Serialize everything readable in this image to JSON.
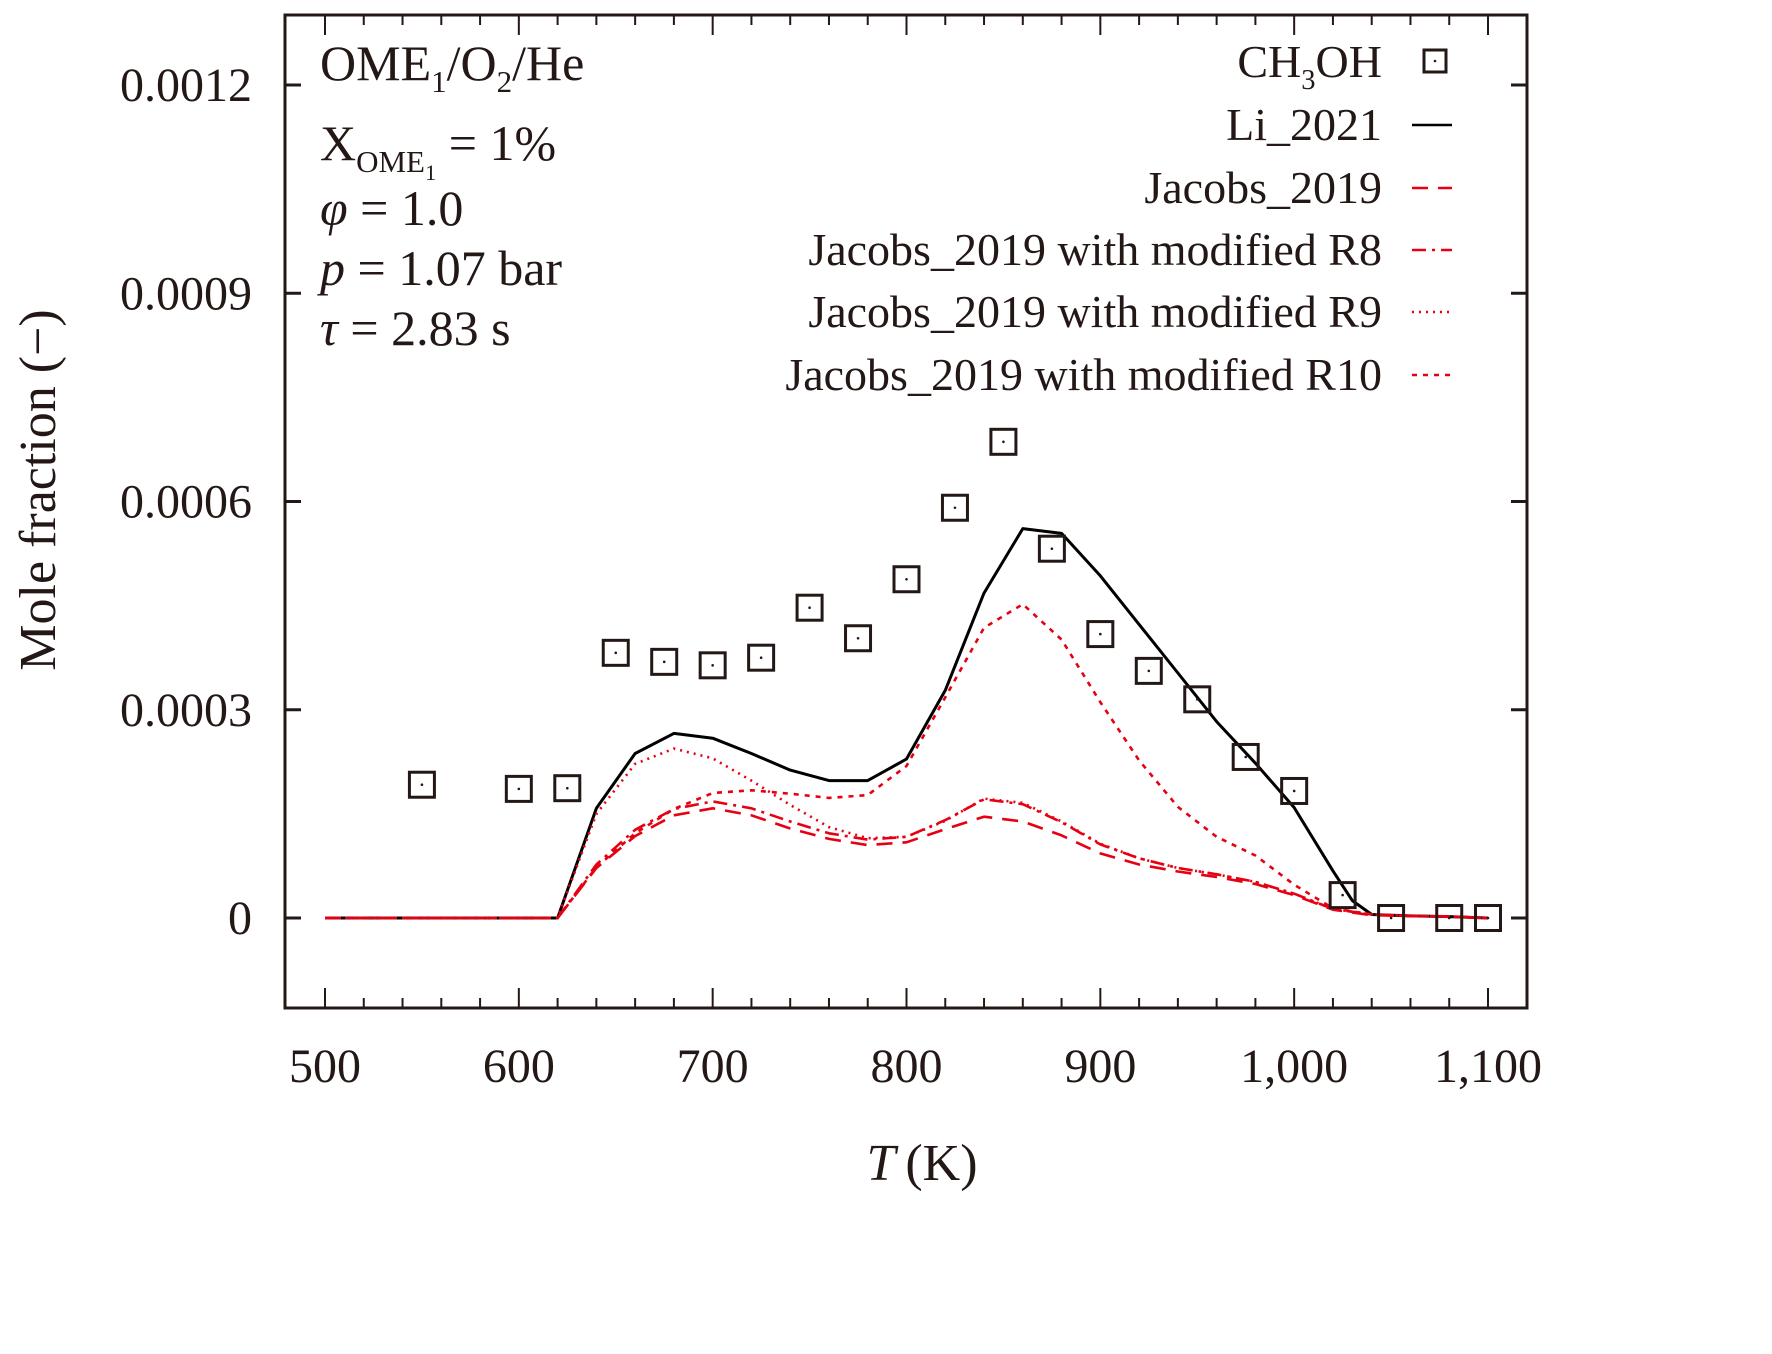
{
  "chart_data": {
    "type": "line",
    "title": "",
    "xlabel": "T (K)",
    "xlabel_italic_part": "T",
    "xlabel_unit": "(K)",
    "ylabel": "Mole fraction (−)",
    "xlim": [
      480,
      1110
    ],
    "ylim": [
      -0.00013,
      0.00128
    ],
    "xticks": [
      500,
      600,
      700,
      800,
      900,
      1000,
      1100
    ],
    "xtick_labels": [
      "500",
      "600",
      "700",
      "800",
      "900",
      "1,000",
      "1,100"
    ],
    "yticks": [
      0,
      0.0003,
      0.0006,
      0.0009,
      0.0012
    ],
    "ytick_labels": [
      "0",
      "0.0003",
      "0.0006",
      "0.0009",
      "0.0012"
    ],
    "grid": false,
    "legend_position": "top-right",
    "annotation": {
      "lines": [
        {
          "id": "mix",
          "parts": [
            [
              "OME",
              "n"
            ],
            [
              "1",
              "sub"
            ],
            [
              "/O",
              "n"
            ],
            [
              "2",
              "sub"
            ],
            [
              "/He",
              "n"
            ]
          ]
        },
        {
          "id": "x",
          "parts": [
            [
              "X",
              "n"
            ],
            [
              "OME",
              "sub"
            ],
            [
              "1",
              "subsub"
            ],
            [
              " = 1%",
              "n"
            ]
          ]
        },
        {
          "id": "phi",
          "parts": [
            [
              "φ",
              "i"
            ],
            [
              " = 1.0",
              "n"
            ]
          ]
        },
        {
          "id": "p",
          "parts": [
            [
              "p",
              "i"
            ],
            [
              " = 1.07 bar",
              "n"
            ]
          ]
        },
        {
          "id": "tau",
          "parts": [
            [
              "τ",
              "i"
            ],
            [
              " = 2.83 s",
              "n"
            ]
          ]
        }
      ]
    },
    "series": [
      {
        "name": "CH3OH",
        "legend_parts": [
          [
            "CH",
            "n"
          ],
          [
            "3",
            "sub"
          ],
          [
            "OH",
            "n"
          ]
        ],
        "kind": "scatter",
        "marker": "square-dot",
        "color": "#231815",
        "x": [
          550,
          600,
          625,
          650,
          675,
          700,
          725,
          750,
          775,
          800,
          825,
          850,
          875,
          900,
          925,
          950,
          975,
          1000,
          1025,
          1050,
          1080,
          1100
        ],
        "y": [
          0.000192,
          0.000186,
          0.000187,
          0.000382,
          0.000369,
          0.000364,
          0.000375,
          0.000447,
          0.000403,
          0.000488,
          0.000591,
          0.000686,
          0.000532,
          0.000409,
          0.000356,
          0.000315,
          0.000232,
          0.000183,
          3.3e-05,
          0.0,
          0.0,
          0.0
        ]
      },
      {
        "name": "Li_2021",
        "kind": "line",
        "dash": "solid",
        "color": "#000000",
        "x": [
          500,
          620,
          640,
          660,
          680,
          700,
          720,
          740,
          760,
          780,
          800,
          820,
          840,
          860,
          880,
          900,
          920,
          940,
          960,
          980,
          1000,
          1020,
          1030,
          1040,
          1060,
          1080,
          1100
        ],
        "y": [
          0,
          0,
          0.000158,
          0.000237,
          0.000266,
          0.000259,
          0.000237,
          0.000213,
          0.000198,
          0.000198,
          0.000229,
          0.000328,
          0.000468,
          0.000561,
          0.000554,
          0.000493,
          0.000423,
          0.000353,
          0.000283,
          0.000223,
          0.000159,
          6.8e-05,
          2.5e-05,
          5e-06,
          3e-06,
          2e-06,
          0.0
        ]
      },
      {
        "name": "Jacobs_2019",
        "kind": "line",
        "dash": "dashed",
        "color": "#e60012",
        "x": [
          500,
          620,
          640,
          660,
          680,
          700,
          720,
          740,
          760,
          780,
          800,
          820,
          840,
          860,
          880,
          900,
          920,
          940,
          960,
          980,
          1000,
          1020,
          1040,
          1060,
          1080,
          1100
        ],
        "y": [
          0,
          0,
          7.2e-05,
          0.000118,
          0.000148,
          0.000158,
          0.000148,
          0.000129,
          0.000114,
          0.000105,
          0.000109,
          0.000128,
          0.000146,
          0.000139,
          0.000119,
          9.3e-05,
          7.7e-05,
          6.7e-05,
          5.9e-05,
          4.9e-05,
          3.3e-05,
          1.2e-05,
          4e-06,
          3e-06,
          2e-06,
          0.0
        ]
      },
      {
        "name": "Jacobs_2019 with modified R8",
        "kind": "line",
        "dash": "dashdot",
        "color": "#e60012",
        "x": [
          500,
          620,
          640,
          660,
          680,
          700,
          720,
          740,
          760,
          780,
          800,
          820,
          840,
          860,
          880,
          900,
          920,
          940,
          960,
          980,
          1000,
          1020,
          1040,
          1060,
          1080,
          1100
        ],
        "y": [
          0,
          0,
          7.7e-05,
          0.000127,
          0.000157,
          0.000168,
          0.000158,
          0.000139,
          0.000122,
          0.000113,
          0.000117,
          0.000141,
          0.000171,
          0.000164,
          0.000138,
          0.000106,
          8.6e-05,
          7.2e-05,
          6.3e-05,
          5.2e-05,
          3.5e-05,
          1.3e-05,
          5e-06,
          3e-06,
          2e-06,
          0.0
        ]
      },
      {
        "name": "Jacobs_2019 with modified R9",
        "kind": "line",
        "dash": "dotted",
        "color": "#e60012",
        "x": [
          500,
          620,
          640,
          660,
          680,
          700,
          720,
          740,
          760,
          780,
          800,
          820,
          840,
          860,
          880,
          900,
          920,
          940,
          960,
          980,
          1000,
          1020,
          1040,
          1060,
          1080,
          1100
        ],
        "y": [
          0,
          0,
          0.00015,
          0.000222,
          0.000244,
          0.00023,
          0.000198,
          0.000163,
          0.000131,
          0.000115,
          0.000117,
          0.00014,
          0.000172,
          0.000166,
          0.000139,
          0.000107,
          8.6e-05,
          7.2e-05,
          6.3e-05,
          5.2e-05,
          3.5e-05,
          1.3e-05,
          5e-06,
          3e-06,
          2e-06,
          0.0
        ]
      },
      {
        "name": "Jacobs_2019 with modified R10",
        "kind": "line",
        "dash": "shortdash",
        "color": "#e60012",
        "x": [
          500,
          620,
          640,
          660,
          680,
          700,
          720,
          740,
          760,
          780,
          800,
          820,
          840,
          860,
          880,
          900,
          920,
          940,
          960,
          980,
          1000,
          1020,
          1040,
          1060,
          1080,
          1100
        ],
        "y": [
          0,
          0,
          7.3e-05,
          0.000122,
          0.000157,
          0.00018,
          0.000184,
          0.000179,
          0.000173,
          0.000177,
          0.000219,
          0.000318,
          0.000418,
          0.000452,
          0.000401,
          0.000311,
          0.000227,
          0.00016,
          0.000117,
          9e-05,
          4.8e-05,
          1.4e-05,
          5e-06,
          3e-06,
          2e-06,
          0.0
        ]
      }
    ]
  }
}
